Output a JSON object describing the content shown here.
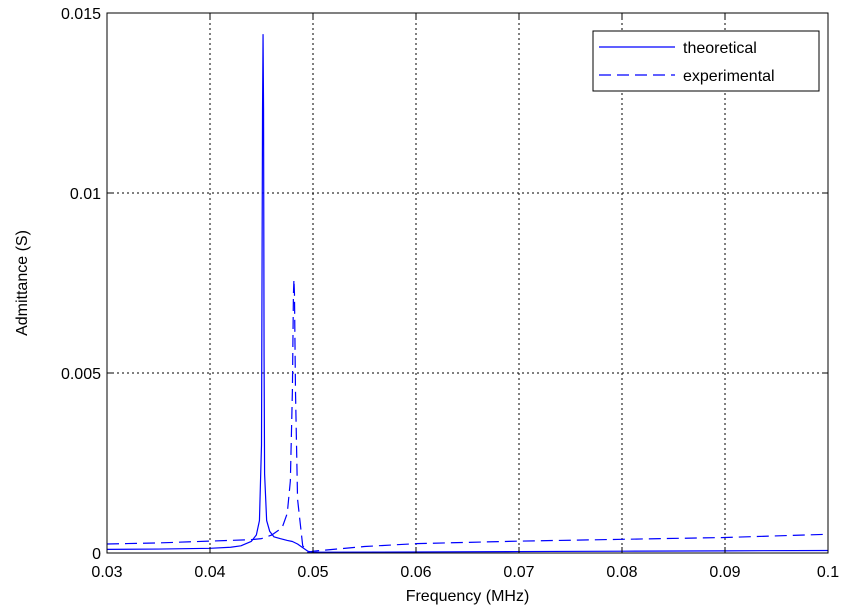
{
  "chart_data": {
    "type": "line",
    "title": "",
    "xlabel": "Frequency (MHz)",
    "ylabel": "Admittance (S)",
    "xlim": [
      0.03,
      0.1
    ],
    "ylim": [
      0,
      0.015
    ],
    "xticks": [
      0.03,
      0.04,
      0.05,
      0.06,
      0.07,
      0.08,
      0.09,
      0.1
    ],
    "xtick_labels": [
      "0.03",
      "0.04",
      "0.05",
      "0.06",
      "0.07",
      "0.08",
      "0.09",
      "0.1"
    ],
    "yticks": [
      0,
      0.005,
      0.01,
      0.015
    ],
    "ytick_labels": [
      "0",
      "0.005",
      "0.01",
      "0.015"
    ],
    "grid": true,
    "legend_position": "top-right",
    "series": [
      {
        "name": "theoretical",
        "color": "#0000ff",
        "style": "solid",
        "x": [
          0.03,
          0.035,
          0.04,
          0.042,
          0.043,
          0.044,
          0.0445,
          0.0448,
          0.045,
          0.0451,
          0.04515,
          0.0452,
          0.04525,
          0.0453,
          0.0455,
          0.0458,
          0.0462,
          0.0468,
          0.0475,
          0.048,
          0.0485,
          0.049,
          0.0495,
          0.05,
          0.06,
          0.07,
          0.08,
          0.09,
          0.1
        ],
        "y": [
          0.0001,
          0.00011,
          0.00013,
          0.00016,
          0.0002,
          0.00032,
          0.0005,
          0.0009,
          0.003,
          0.0123,
          0.0144,
          0.0123,
          0.0055,
          0.0022,
          0.0009,
          0.0006,
          0.00045,
          0.0004,
          0.00035,
          0.00032,
          0.00025,
          0.00015,
          5e-05,
          2e-05,
          3e-05,
          4e-05,
          5e-05,
          6e-05,
          7e-05
        ]
      },
      {
        "name": "experimental",
        "color": "#0000ff",
        "style": "dashed",
        "x": [
          0.03,
          0.035,
          0.04,
          0.044,
          0.045,
          0.046,
          0.047,
          0.0475,
          0.0478,
          0.048,
          0.0481,
          0.04815,
          0.0482,
          0.0483,
          0.0485,
          0.049,
          0.0495,
          0.05,
          0.055,
          0.06,
          0.07,
          0.08,
          0.09,
          0.1
        ],
        "y": [
          0.00025,
          0.00028,
          0.00033,
          0.00037,
          0.0004,
          0.0005,
          0.0007,
          0.0011,
          0.002,
          0.0045,
          0.0072,
          0.0076,
          0.0072,
          0.0045,
          0.0015,
          0.0002,
          2e-05,
          5e-05,
          0.00018,
          0.00026,
          0.00033,
          0.00038,
          0.00043,
          0.00052
        ]
      }
    ]
  }
}
